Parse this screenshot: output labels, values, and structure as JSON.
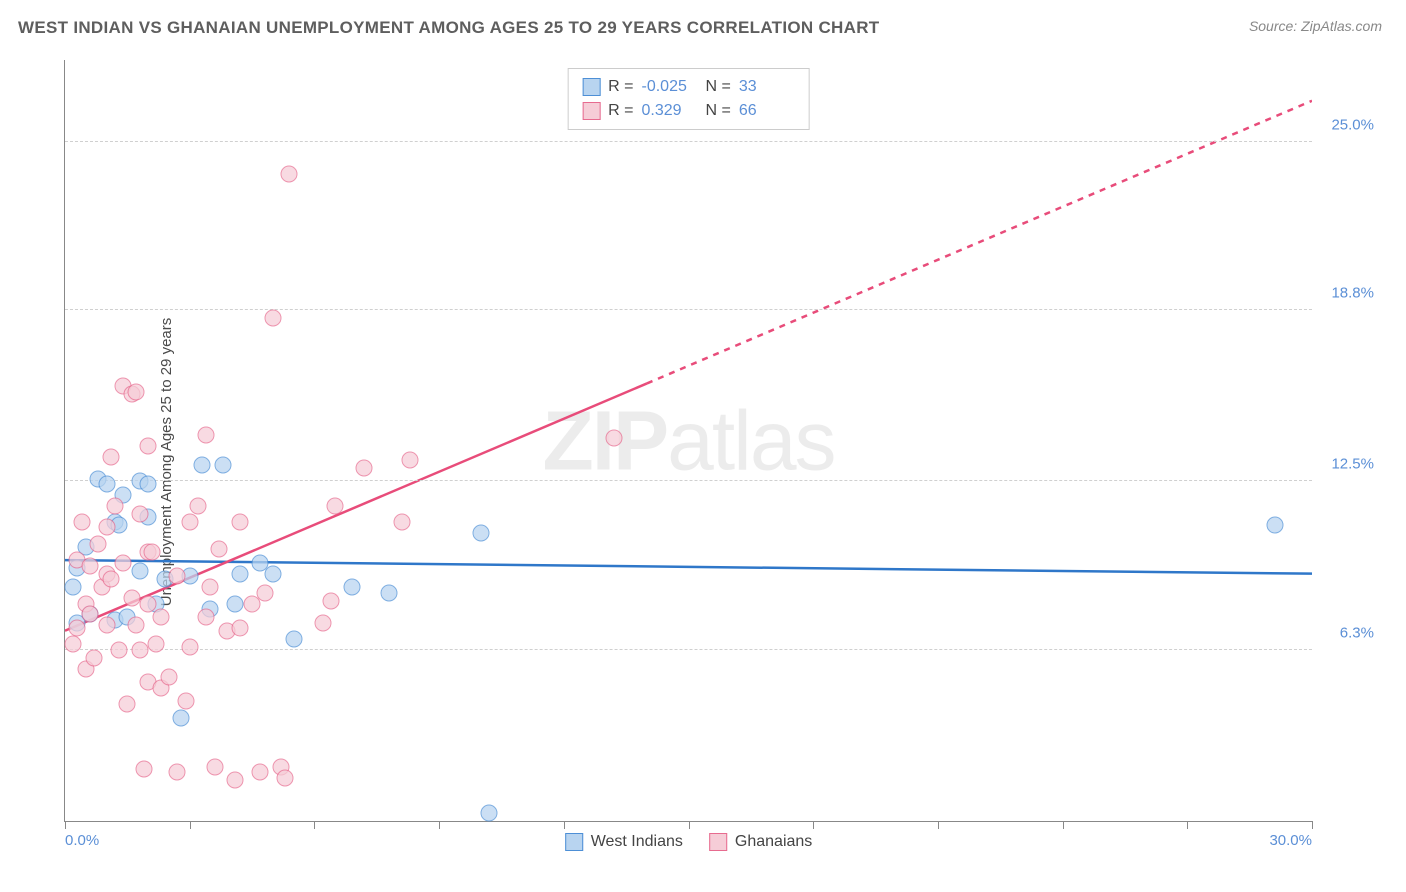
{
  "title": "WEST INDIAN VS GHANAIAN UNEMPLOYMENT AMONG AGES 25 TO 29 YEARS CORRELATION CHART",
  "source": "Source: ZipAtlas.com",
  "y_axis_label": "Unemployment Among Ages 25 to 29 years",
  "watermark": {
    "bold": "ZIP",
    "rest": "atlas"
  },
  "chart": {
    "type": "scatter",
    "xlim": [
      0,
      30
    ],
    "ylim": [
      0,
      28
    ],
    "x_ticks": [
      0,
      3,
      6,
      9,
      12,
      15,
      18,
      21,
      24,
      27,
      30
    ],
    "y_gridlines": [
      6.3,
      12.5,
      18.8,
      25.0
    ],
    "y_right_labels": [
      "6.3%",
      "12.5%",
      "18.8%",
      "25.0%"
    ],
    "x_min_label": "0.0%",
    "x_max_label": "30.0%",
    "background_color": "#ffffff",
    "grid_color": "#d0d0d0",
    "marker_radius": 8.5,
    "marker_opacity": 0.72,
    "series": [
      {
        "name": "West Indians",
        "class": "blue",
        "fill": "#b8d4f0",
        "stroke": "#4d8fd6",
        "trend": {
          "color": "#2f77c9",
          "width": 2.5,
          "x1": 0,
          "y1": 9.6,
          "x2": 30,
          "y2": 9.1,
          "dash": null,
          "solid_until": 30
        },
        "R": "-0.025",
        "N": "33",
        "points": [
          [
            0.2,
            8.6
          ],
          [
            0.3,
            9.3
          ],
          [
            0.3,
            7.3
          ],
          [
            0.5,
            10.1
          ],
          [
            0.6,
            7.6
          ],
          [
            0.8,
            12.6
          ],
          [
            1.0,
            12.4
          ],
          [
            1.2,
            11.0
          ],
          [
            1.2,
            7.4
          ],
          [
            1.3,
            10.9
          ],
          [
            1.4,
            12.0
          ],
          [
            1.5,
            7.5
          ],
          [
            1.8,
            12.5
          ],
          [
            1.8,
            9.2
          ],
          [
            2.0,
            11.2
          ],
          [
            2.0,
            12.4
          ],
          [
            2.2,
            8.0
          ],
          [
            2.4,
            8.9
          ],
          [
            2.8,
            3.8
          ],
          [
            3.5,
            7.8
          ],
          [
            3.0,
            9.0
          ],
          [
            3.3,
            13.1
          ],
          [
            3.8,
            13.1
          ],
          [
            4.2,
            9.1
          ],
          [
            4.1,
            8.0
          ],
          [
            4.7,
            9.5
          ],
          [
            5.0,
            9.1
          ],
          [
            5.5,
            6.7
          ],
          [
            6.9,
            8.6
          ],
          [
            10.0,
            10.6
          ],
          [
            10.2,
            0.3
          ],
          [
            7.8,
            8.4
          ],
          [
            29.1,
            10.9
          ]
        ]
      },
      {
        "name": "Ghanaians",
        "class": "pink",
        "fill": "#f6cdd7",
        "stroke": "#e76b8f",
        "trend": {
          "color": "#e84c7a",
          "width": 2.5,
          "x1": 0,
          "y1": 7.0,
          "x2": 30,
          "y2": 26.5,
          "dash": "6,6",
          "solid_until": 14
        },
        "R": "0.329",
        "N": "66",
        "points": [
          [
            0.2,
            6.5
          ],
          [
            0.3,
            7.1
          ],
          [
            0.3,
            9.6
          ],
          [
            0.4,
            11.0
          ],
          [
            0.5,
            8.0
          ],
          [
            0.5,
            5.6
          ],
          [
            0.6,
            7.6
          ],
          [
            0.6,
            9.4
          ],
          [
            0.7,
            6.0
          ],
          [
            0.8,
            10.2
          ],
          [
            0.9,
            8.6
          ],
          [
            1.0,
            10.8
          ],
          [
            1.0,
            7.2
          ],
          [
            1.0,
            9.1
          ],
          [
            1.1,
            13.4
          ],
          [
            1.1,
            8.9
          ],
          [
            1.2,
            11.6
          ],
          [
            1.3,
            6.3
          ],
          [
            1.4,
            9.5
          ],
          [
            1.4,
            16.0
          ],
          [
            1.5,
            4.3
          ],
          [
            1.6,
            8.2
          ],
          [
            1.6,
            15.7
          ],
          [
            1.7,
            7.2
          ],
          [
            1.7,
            15.8
          ],
          [
            1.8,
            6.3
          ],
          [
            1.8,
            11.3
          ],
          [
            1.9,
            1.9
          ],
          [
            2.0,
            8.0
          ],
          [
            2.0,
            9.9
          ],
          [
            2.0,
            5.1
          ],
          [
            2.0,
            13.8
          ],
          [
            2.1,
            9.9
          ],
          [
            2.2,
            6.5
          ],
          [
            2.3,
            4.9
          ],
          [
            2.3,
            7.5
          ],
          [
            2.5,
            5.3
          ],
          [
            2.7,
            1.8
          ],
          [
            2.7,
            9.0
          ],
          [
            2.9,
            4.4
          ],
          [
            3.0,
            6.4
          ],
          [
            3.0,
            11.0
          ],
          [
            3.2,
            11.6
          ],
          [
            3.4,
            14.2
          ],
          [
            3.4,
            7.5
          ],
          [
            3.5,
            8.6
          ],
          [
            3.6,
            2.0
          ],
          [
            3.7,
            10.0
          ],
          [
            3.9,
            7.0
          ],
          [
            4.1,
            1.5
          ],
          [
            4.2,
            7.1
          ],
          [
            4.2,
            11.0
          ],
          [
            4.5,
            8.0
          ],
          [
            4.7,
            1.8
          ],
          [
            4.8,
            8.4
          ],
          [
            5.0,
            18.5
          ],
          [
            5.2,
            2.0
          ],
          [
            5.3,
            1.6
          ],
          [
            5.4,
            23.8
          ],
          [
            6.2,
            7.3
          ],
          [
            6.4,
            8.1
          ],
          [
            6.5,
            11.6
          ],
          [
            7.2,
            13.0
          ],
          [
            8.1,
            11.0
          ],
          [
            8.3,
            13.3
          ],
          [
            13.2,
            14.1
          ]
        ]
      }
    ]
  },
  "top_legend": {
    "rows": [
      {
        "class": "blue",
        "R_label": "R =",
        "R_val": "-0.025",
        "N_label": "N =",
        "N_val": "33"
      },
      {
        "class": "pink",
        "R_label": "R =",
        "R_val": "0.329",
        "N_label": "N =",
        "N_val": "66"
      }
    ]
  },
  "bottom_legend": {
    "items": [
      {
        "class": "blue",
        "label": "West Indians"
      },
      {
        "class": "pink",
        "label": "Ghanaians"
      }
    ]
  }
}
